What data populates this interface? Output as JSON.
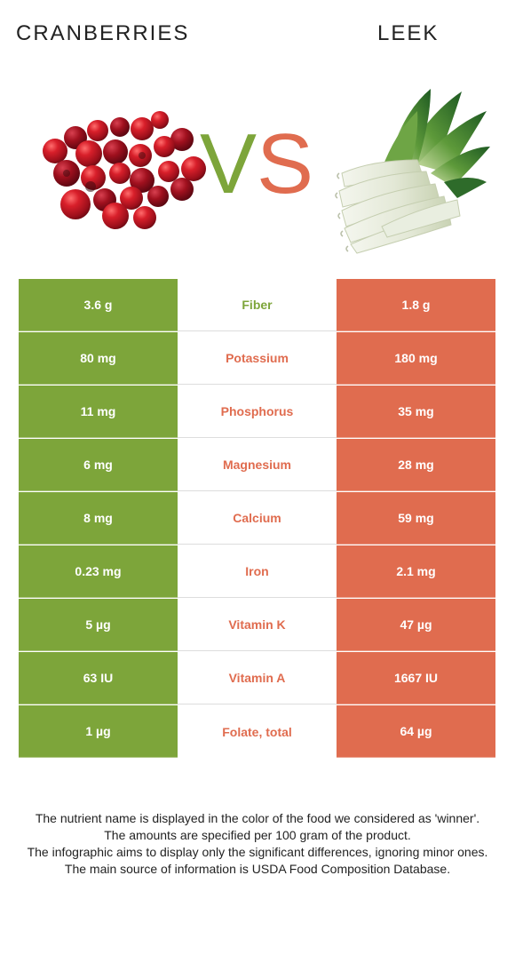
{
  "header": {
    "left_food": "CRANBERRIES",
    "right_food": "LEEK",
    "vs_v": "V",
    "vs_s": "S"
  },
  "colors": {
    "left_accent": "#7da53a",
    "right_accent": "#e06c4f"
  },
  "nutrients": [
    {
      "name": "Fiber",
      "left": "3.6 g",
      "right": "1.8 g",
      "winner": "left"
    },
    {
      "name": "Potassium",
      "left": "80 mg",
      "right": "180 mg",
      "winner": "right"
    },
    {
      "name": "Phosphorus",
      "left": "11 mg",
      "right": "35 mg",
      "winner": "right"
    },
    {
      "name": "Magnesium",
      "left": "6 mg",
      "right": "28 mg",
      "winner": "right"
    },
    {
      "name": "Calcium",
      "left": "8 mg",
      "right": "59 mg",
      "winner": "right"
    },
    {
      "name": "Iron",
      "left": "0.23 mg",
      "right": "2.1 mg",
      "winner": "right"
    },
    {
      "name": "Vitamin K",
      "left": "5 µg",
      "right": "47 µg",
      "winner": "right"
    },
    {
      "name": "Vitamin A",
      "left": "63 IU",
      "right": "1667 IU",
      "winner": "right"
    },
    {
      "name": "Folate, total",
      "left": "1 µg",
      "right": "64 µg",
      "winner": "right"
    }
  ],
  "notes": [
    "The nutrient name is displayed in the color of the food we considered as 'winner'.",
    "The amounts are specified per 100 gram of the product.",
    "The infographic aims to display only the significant differences, ignoring minor ones.",
    "The main source of information is USDA Food Composition Database."
  ],
  "images": {
    "left": "cranberries-illustration",
    "right": "leek-illustration"
  }
}
